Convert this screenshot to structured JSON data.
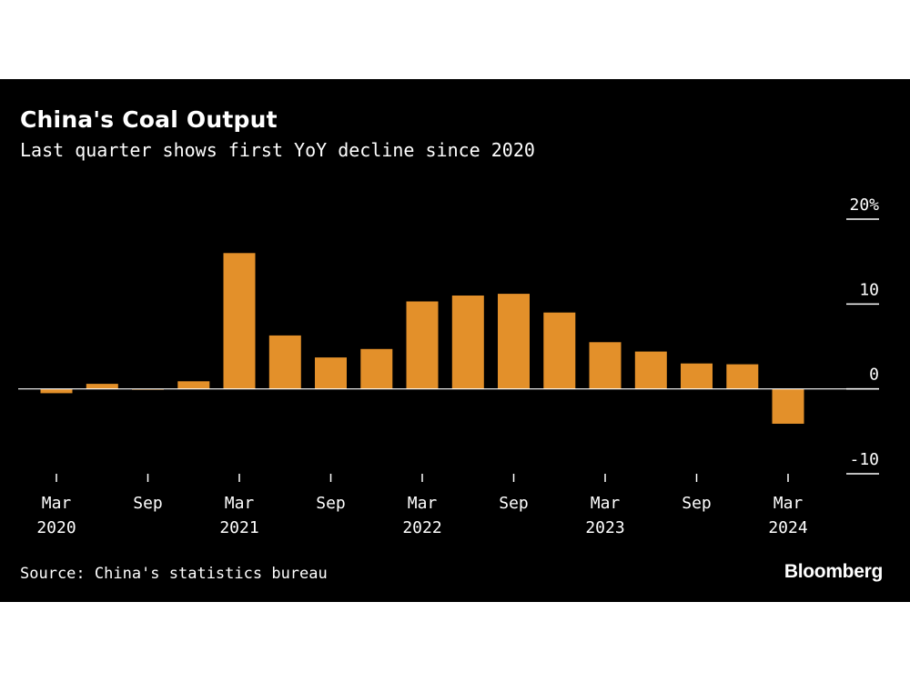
{
  "chart_data": {
    "type": "bar",
    "title": "China's Coal Output",
    "subtitle": "Last quarter shows first YoY decline since 2020",
    "categories": [
      "Mar 2020",
      "Jun 2020",
      "Sep 2020",
      "Dec 2020",
      "Mar 2021",
      "Jun 2021",
      "Sep 2021",
      "Dec 2021",
      "Mar 2022",
      "Jun 2022",
      "Sep 2022",
      "Dec 2022",
      "Mar 2023",
      "Jun 2023",
      "Sep 2023",
      "Dec 2023",
      "Mar 2024"
    ],
    "values": [
      -0.5,
      0.6,
      -0.1,
      0.9,
      16.0,
      6.3,
      3.7,
      4.7,
      10.3,
      11.0,
      11.2,
      9.0,
      5.5,
      4.4,
      3.0,
      2.9,
      -4.1
    ],
    "ylim": [
      -10,
      20
    ],
    "yticks": [
      {
        "value": 20,
        "label": "20%"
      },
      {
        "value": 10,
        "label": "10"
      },
      {
        "value": 0,
        "label": "0"
      },
      {
        "value": -10,
        "label": "-10"
      }
    ],
    "xticks": [
      {
        "index": 0,
        "month": "Mar",
        "year": "2020"
      },
      {
        "index": 2,
        "month": "Sep",
        "year": ""
      },
      {
        "index": 4,
        "month": "Mar",
        "year": "2021"
      },
      {
        "index": 6,
        "month": "Sep",
        "year": ""
      },
      {
        "index": 8,
        "month": "Mar",
        "year": "2022"
      },
      {
        "index": 10,
        "month": "Sep",
        "year": ""
      },
      {
        "index": 12,
        "month": "Mar",
        "year": "2023"
      },
      {
        "index": 14,
        "month": "Sep",
        "year": ""
      },
      {
        "index": 16,
        "month": "Mar",
        "year": "2024"
      }
    ],
    "xlabel": "",
    "ylabel": "",
    "bar_color": "#E3902A",
    "grid": false
  },
  "source": "Source: China's statistics bureau",
  "brand": "Bloomberg"
}
